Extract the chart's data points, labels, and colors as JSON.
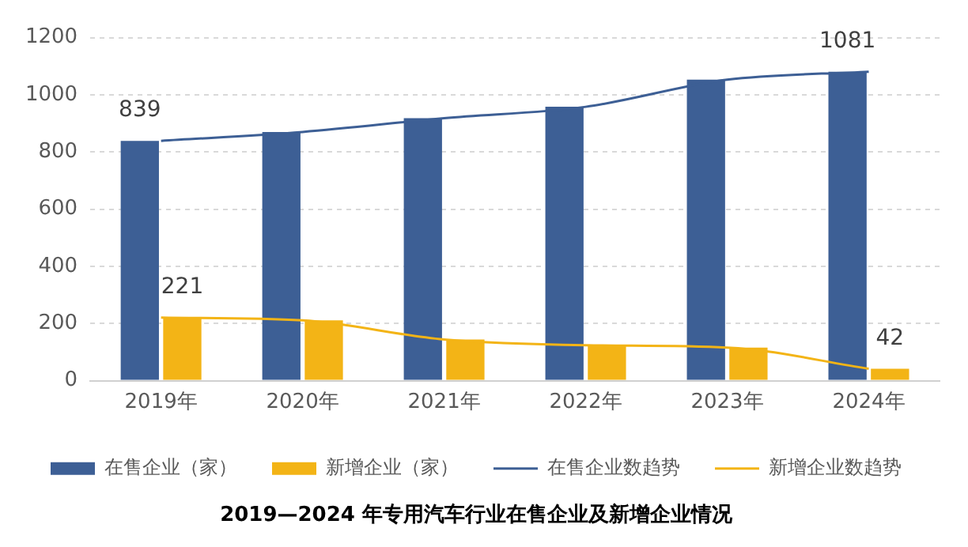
{
  "chart_data": {
    "type": "bar",
    "title": "2019—2024 年专用汽车行业在售企业及新增企业情况",
    "categories": [
      "2019年",
      "2020年",
      "2021年",
      "2022年",
      "2023年",
      "2024年"
    ],
    "series": [
      {
        "name": "在售企业（家）",
        "color": "#3d5f95",
        "values": [
          839,
          870,
          918,
          958,
          1053,
          1081
        ],
        "value_labels": [
          "839",
          null,
          null,
          null,
          null,
          "1081"
        ]
      },
      {
        "name": "新增企业（家）",
        "color": "#f3b416",
        "values": [
          221,
          211,
          144,
          124,
          116,
          42
        ],
        "value_labels": [
          "221",
          null,
          null,
          null,
          null,
          "42"
        ]
      },
      {
        "name": "在售企业数趋势",
        "type": "line",
        "color": "#3d5f95",
        "values": [
          839,
          870,
          918,
          958,
          1053,
          1081
        ]
      },
      {
        "name": "新增企业数趋势",
        "type": "line",
        "color": "#f3b416",
        "values": [
          221,
          211,
          144,
          124,
          116,
          42
        ]
      }
    ],
    "ylim": [
      0,
      1200
    ],
    "yticks": [
      0,
      200,
      400,
      600,
      800,
      1000,
      1200
    ],
    "grid": "y",
    "legend": "bottom",
    "marker": "none",
    "line_style": "solid"
  }
}
